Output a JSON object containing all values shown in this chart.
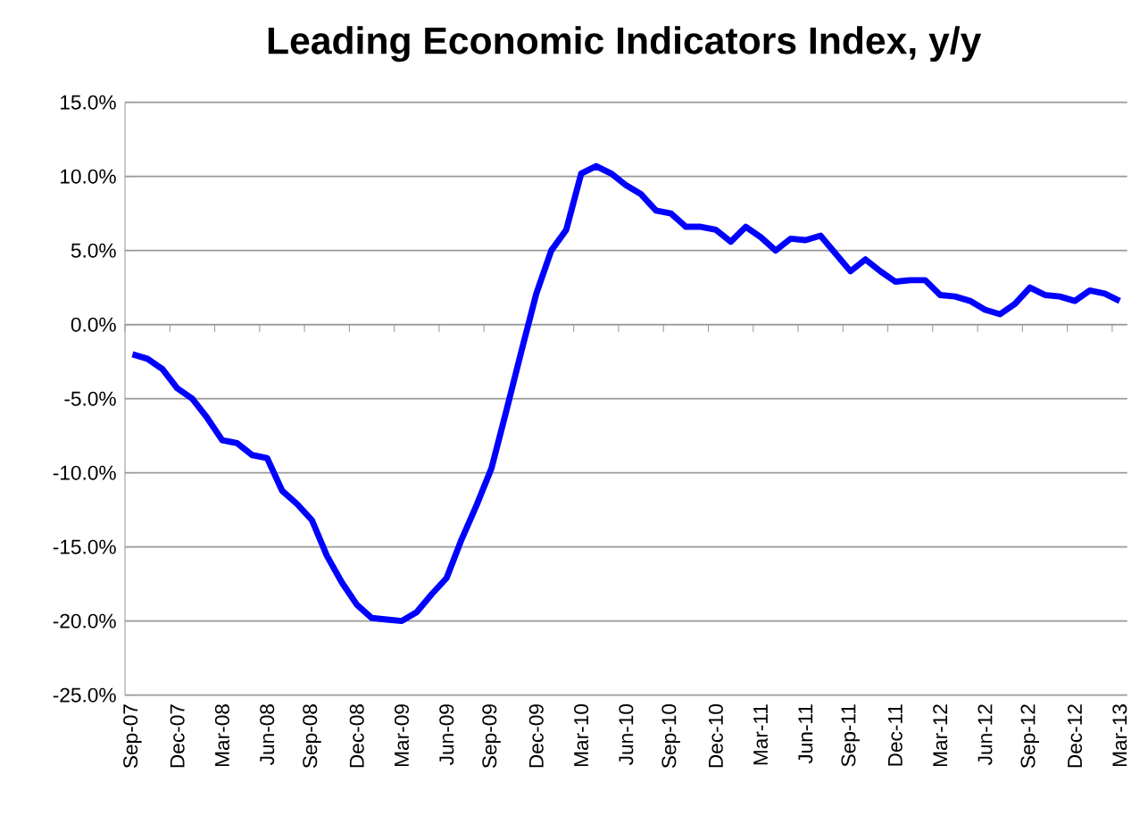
{
  "chart_data": {
    "type": "line",
    "title": "Leading Economic Indicators Index, y/y",
    "categories": [
      "Sep-07",
      null,
      null,
      "Dec-07",
      null,
      null,
      "Mar-08",
      null,
      null,
      "Jun-08",
      null,
      null,
      "Sep-08",
      null,
      null,
      "Dec-08",
      null,
      null,
      "Mar-09",
      null,
      null,
      "Jun-09",
      null,
      null,
      "Sep-09",
      null,
      null,
      "Dec-09",
      null,
      null,
      "Mar-10",
      null,
      null,
      "Jun-10",
      null,
      null,
      "Sep-10",
      null,
      null,
      "Dec-10",
      null,
      null,
      "Mar-11",
      null,
      null,
      "Jun-11",
      null,
      null,
      "Sep-11",
      null,
      null,
      "Dec-11",
      null,
      null,
      "Mar-12",
      null,
      null,
      "Jun-12",
      null,
      null,
      "Sep-12",
      null,
      null,
      "Dec-12",
      null,
      null,
      "Mar-13"
    ],
    "series": [
      {
        "color": "#0000ff",
        "values": [
          -2.0,
          -2.3,
          -3.0,
          -4.3,
          -5.0,
          -6.3,
          -7.8,
          -8.0,
          -8.8,
          -9.0,
          -11.2,
          -12.1,
          -13.2,
          -15.6,
          -17.4,
          -18.9,
          -19.8,
          -19.9,
          -20.0,
          -19.4,
          -18.2,
          -17.1,
          -14.5,
          -12.2,
          -9.7,
          -5.8,
          -1.8,
          2.1,
          5.0,
          6.4,
          10.2,
          10.7,
          10.2,
          9.4,
          8.8,
          7.7,
          7.5,
          6.6,
          6.6,
          6.4,
          5.6,
          6.6,
          5.9,
          5.0,
          5.8,
          5.7,
          6.0,
          4.8,
          3.6,
          4.4,
          3.6,
          2.9,
          3.0,
          3.0,
          2.0,
          1.9,
          1.6,
          1.0,
          0.7,
          1.4,
          2.5,
          2.0,
          1.9,
          1.6,
          2.3,
          2.1,
          1.6
        ]
      }
    ],
    "ylim": [
      -25,
      15
    ],
    "yticks": [
      {
        "value": -25,
        "label": "-25.0%"
      },
      {
        "value": -20,
        "label": "-20.0%"
      },
      {
        "value": -15,
        "label": "-15.0%"
      },
      {
        "value": -10,
        "label": "-10.0%"
      },
      {
        "value": -5,
        "label": "-5.0%"
      },
      {
        "value": 0,
        "label": "0.0%"
      },
      {
        "value": 5,
        "label": "5.0%"
      },
      {
        "value": 10,
        "label": "10.0%"
      },
      {
        "value": 15,
        "label": "15.0%"
      }
    ],
    "grid": "y",
    "marker": "none",
    "line_style": "solid"
  }
}
